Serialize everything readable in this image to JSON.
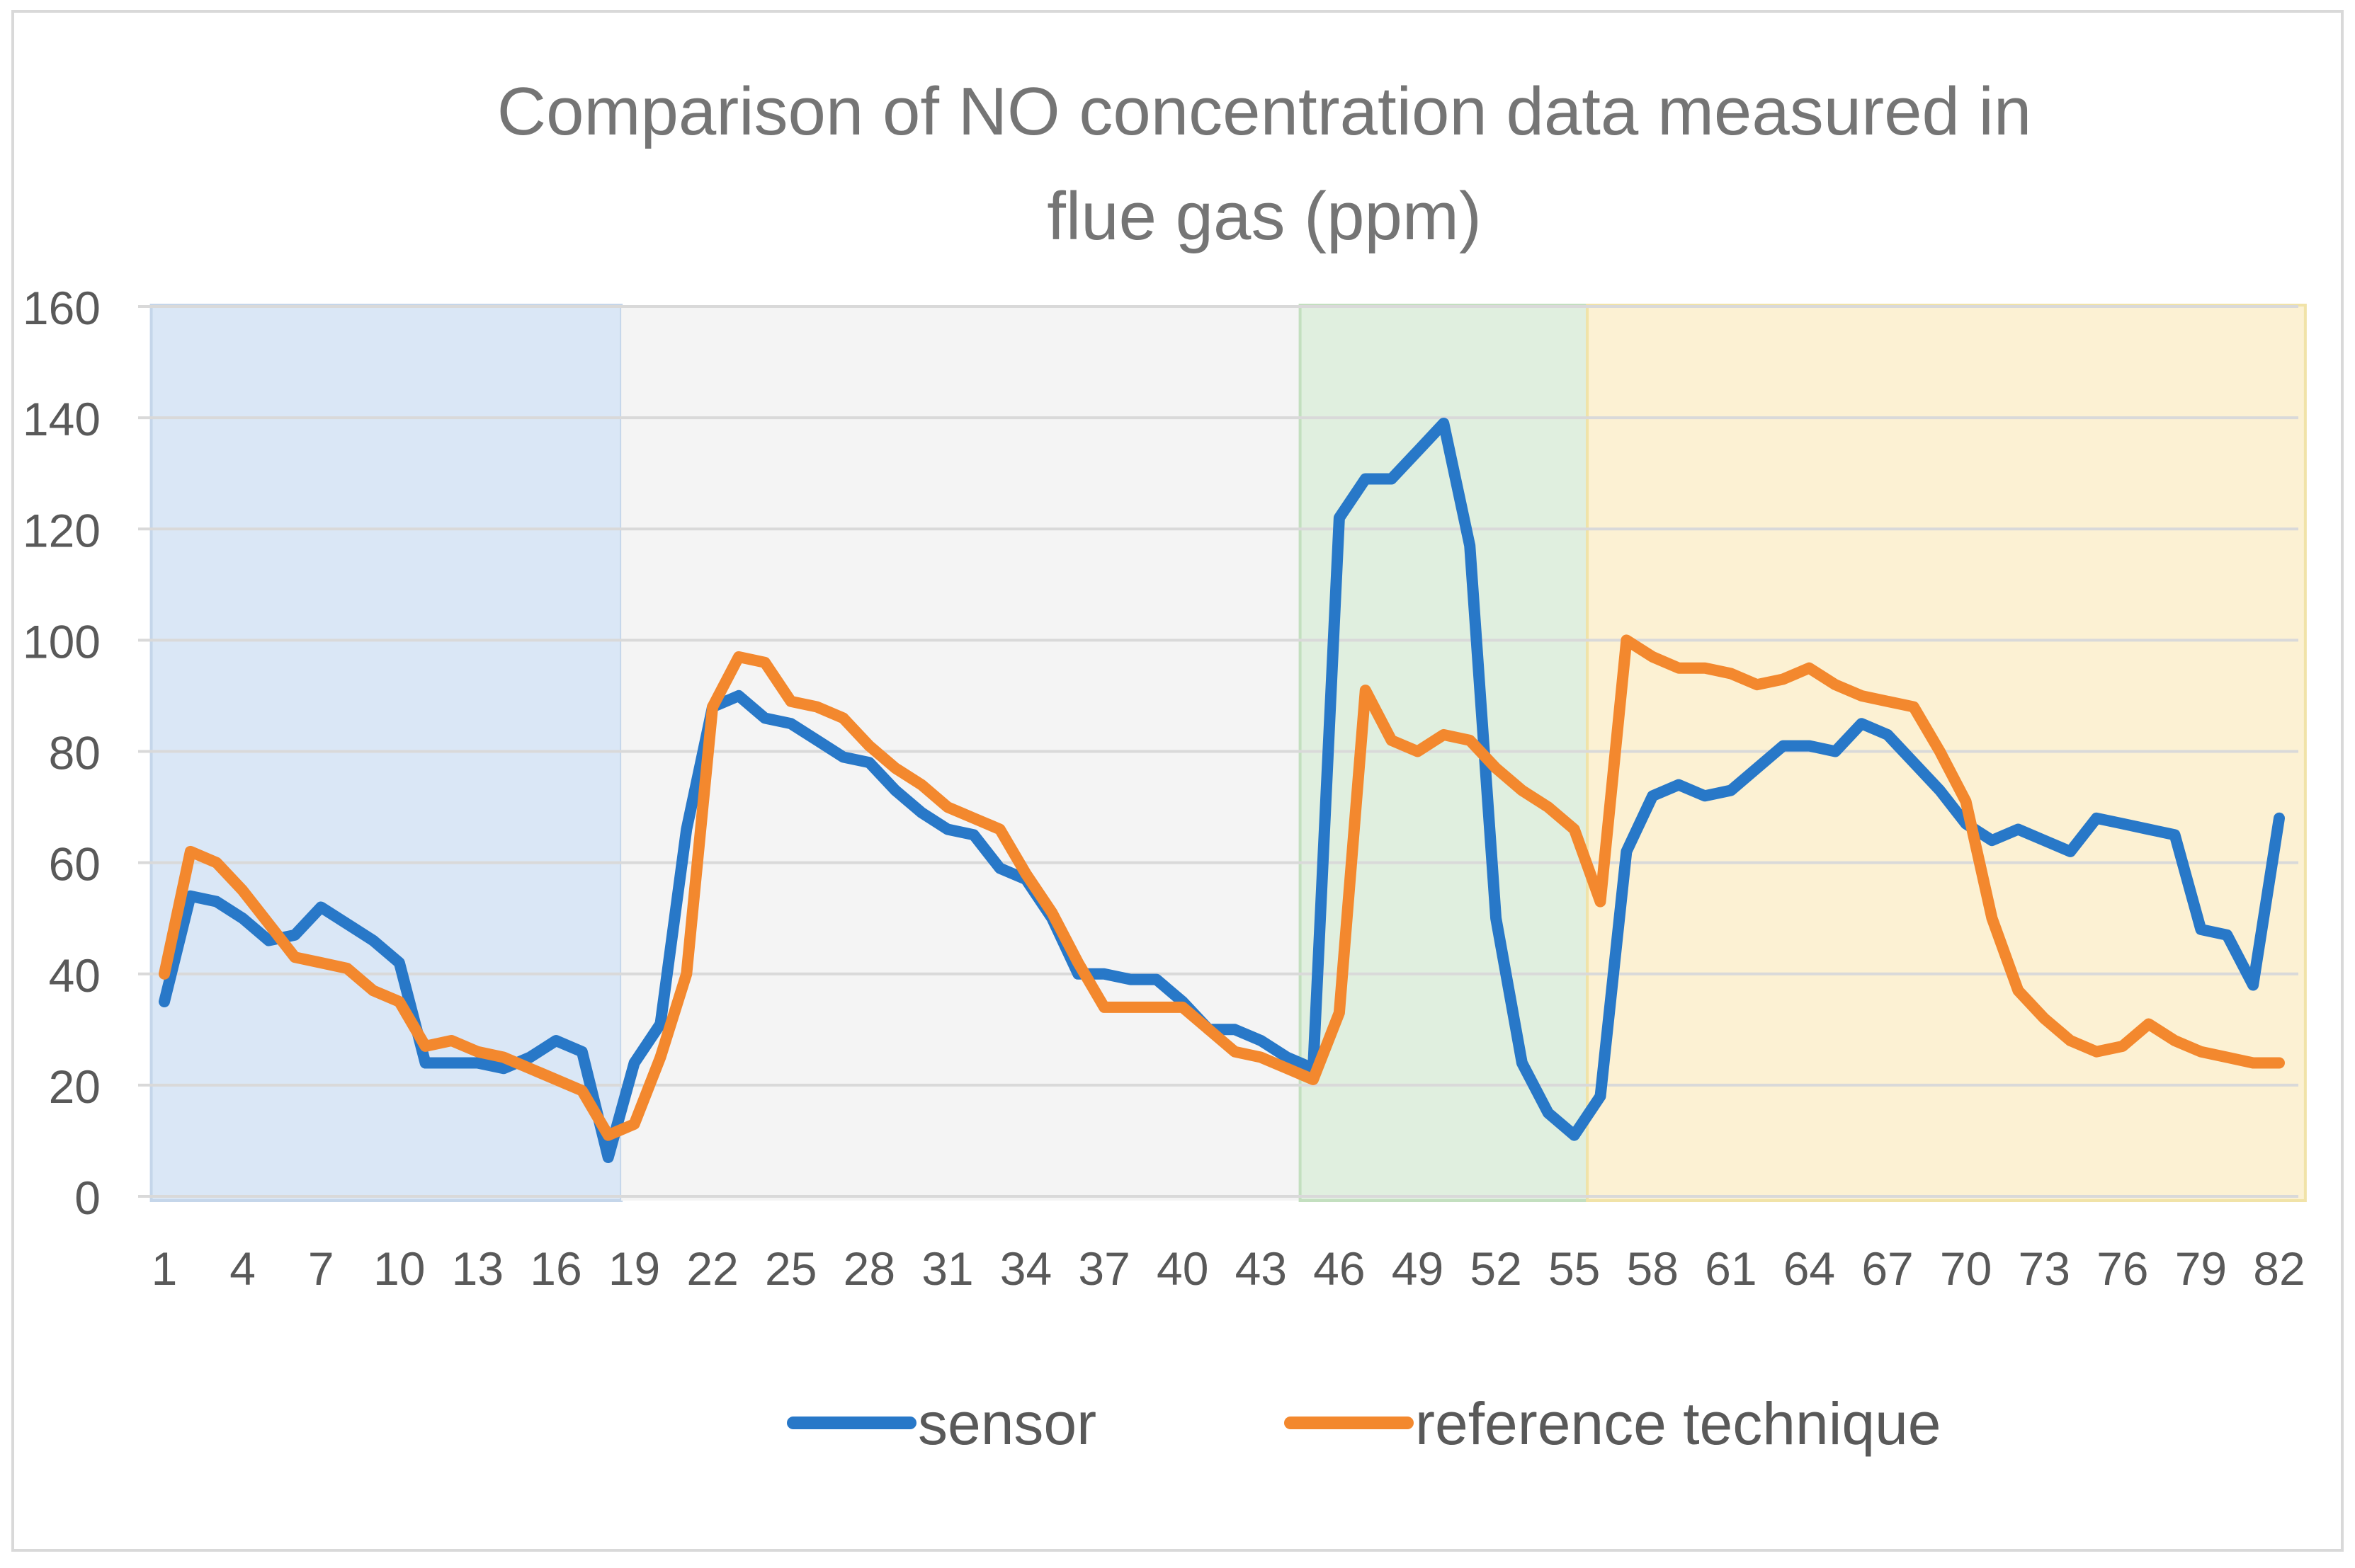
{
  "chart_data": {
    "type": "line",
    "title": "Comparison of NO concentration data measured in flue gas (ppm)",
    "title_lines": [
      "Comparison of NO concentration data measured in",
      "flue gas (ppm)"
    ],
    "xlabel": "",
    "ylabel": "",
    "x": [
      1,
      2,
      3,
      4,
      5,
      6,
      7,
      8,
      9,
      10,
      11,
      12,
      13,
      14,
      15,
      16,
      17,
      18,
      19,
      20,
      21,
      22,
      23,
      24,
      25,
      26,
      27,
      28,
      29,
      30,
      31,
      32,
      33,
      34,
      35,
      36,
      37,
      38,
      39,
      40,
      41,
      42,
      43,
      44,
      45,
      46,
      47,
      48,
      49,
      50,
      51,
      52,
      53,
      54,
      55,
      56,
      57,
      58,
      59,
      60,
      61,
      62,
      63,
      64,
      65,
      66,
      67,
      68,
      69,
      70,
      71,
      72,
      73,
      74,
      75,
      76,
      77,
      78,
      79,
      80,
      81,
      82
    ],
    "x_tick_labels": [
      "1",
      "4",
      "7",
      "10",
      "13",
      "16",
      "19",
      "22",
      "25",
      "28",
      "31",
      "34",
      "37",
      "40",
      "43",
      "46",
      "49",
      "52",
      "55",
      "58",
      "61",
      "64",
      "67",
      "70",
      "73",
      "76",
      "79",
      "82"
    ],
    "ylim": [
      0,
      160
    ],
    "y_ticks": [
      0,
      20,
      40,
      60,
      80,
      100,
      120,
      140,
      160
    ],
    "grid": true,
    "legend_position": "bottom-center",
    "series": [
      {
        "name": "sensor",
        "color": "#2878c8",
        "values": [
          35,
          54,
          53,
          50,
          46,
          47,
          52,
          49,
          46,
          42,
          24,
          24,
          24,
          23,
          25,
          28,
          26,
          7,
          24,
          31,
          66,
          88,
          90,
          86,
          85,
          82,
          79,
          78,
          73,
          69,
          66,
          65,
          59,
          57,
          50,
          40,
          40,
          39,
          39,
          35,
          30,
          30,
          28,
          25,
          23,
          122,
          129,
          129,
          134,
          139,
          117,
          50,
          24,
          15,
          11,
          18,
          62,
          72,
          74,
          72,
          73,
          77,
          81,
          81,
          80,
          85,
          83,
          78,
          73,
          67,
          64,
          66,
          64,
          62,
          68,
          67,
          66,
          65,
          48,
          47,
          38,
          68
        ]
      },
      {
        "name": "reference technique",
        "color": "#f3882e",
        "values": [
          40,
          62,
          60,
          55,
          49,
          43,
          42,
          41,
          37,
          35,
          27,
          28,
          26,
          25,
          23,
          21,
          19,
          11,
          13,
          25,
          40,
          88,
          97,
          96,
          89,
          88,
          86,
          81,
          77,
          74,
          70,
          68,
          66,
          58,
          51,
          42,
          34,
          34,
          34,
          34,
          30,
          26,
          25,
          23,
          21,
          33,
          91,
          82,
          80,
          83,
          82,
          77,
          73,
          70,
          66,
          53,
          100,
          97,
          95,
          95,
          94,
          92,
          93,
          95,
          92,
          90,
          89,
          88,
          80,
          71,
          50,
          37,
          32,
          28,
          26,
          27,
          31,
          28,
          26,
          25,
          24,
          24
        ]
      }
    ],
    "shaded_regions": [
      {
        "x_range": [
          0.5,
          18.5
        ],
        "color": "#dae7f6"
      },
      {
        "x_range": [
          18.5,
          44.5
        ],
        "color": "#f4f4f4"
      },
      {
        "x_range": [
          44.5,
          55.5
        ],
        "color": "#e0efdf"
      },
      {
        "x_range": [
          55.5,
          83
        ],
        "color": "#fcf1d3"
      }
    ]
  },
  "colors": {
    "gridline": "#d9d9d9",
    "axis": "#d9d9d9",
    "title_text": "#757575",
    "tick_text": "#595959",
    "legend_text": "#595959",
    "frame": "#d9d9d9",
    "region_edge_blue": "#c5d6ea",
    "region_edge_green": "#c3dfbf",
    "region_edge_yellow": "#f1e3a8"
  }
}
